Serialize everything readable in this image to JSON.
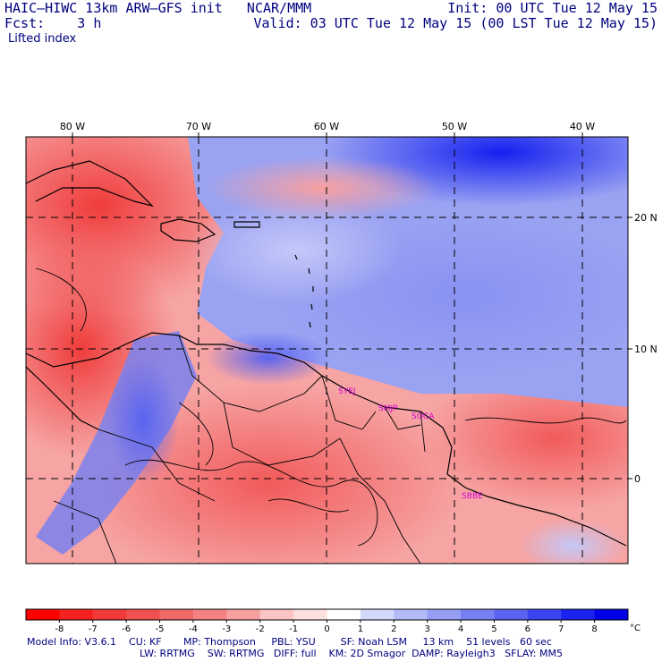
{
  "header": {
    "title": "HAIC–HIWC 13km ARW–GFS init   NCAR/MMM",
    "forecast": "Fcst:    3 h",
    "init": "Init: 00 UTC Tue 12 May 15",
    "valid": "Valid: 03 UTC Tue 12 May 15 (00 LST Tue 12 May 15)",
    "field": "Lifted index"
  },
  "map": {
    "lon_labels": [
      "80 W",
      "70 W",
      "60 W",
      "50 W",
      "40 W"
    ],
    "lat_labels": [
      "20 N",
      "10 N",
      "0"
    ],
    "stations": [
      "SYEJ",
      "SMJP",
      "SOCA",
      "SBBE"
    ],
    "station_color": "#d000d0"
  },
  "colorbar": {
    "labels": [
      "-8",
      "-7",
      "-6",
      "-5",
      "-4",
      "-3",
      "-2",
      "-1",
      "0",
      "1",
      "2",
      "3",
      "4",
      "5",
      "6",
      "7",
      "8"
    ],
    "unit": "°C",
    "colors": [
      "#ff0000",
      "#f52020",
      "#f23a3a",
      "#f05050",
      "#f06868",
      "#f58282",
      "#f8a0a0",
      "#fcc4c4",
      "#fde0e0",
      "#ffffff",
      "#d4d8fb",
      "#b4baf6",
      "#969ef3",
      "#7680f1",
      "#5a64f0",
      "#3a44f0",
      "#1a22f0",
      "#0000e8"
    ]
  },
  "model_info": {
    "line1": "Model Info: V3.6.1    CU: KF       MP: Thompson     PBL: YSU        SF: Noah LSM     13 km    51 levels   60 sec",
    "line2": "LW: RRTMG    SW: RRTMG   DIFF: full    KM: 2D Smagor  DAMP: Rayleigh3   SFLAY: MM5"
  }
}
